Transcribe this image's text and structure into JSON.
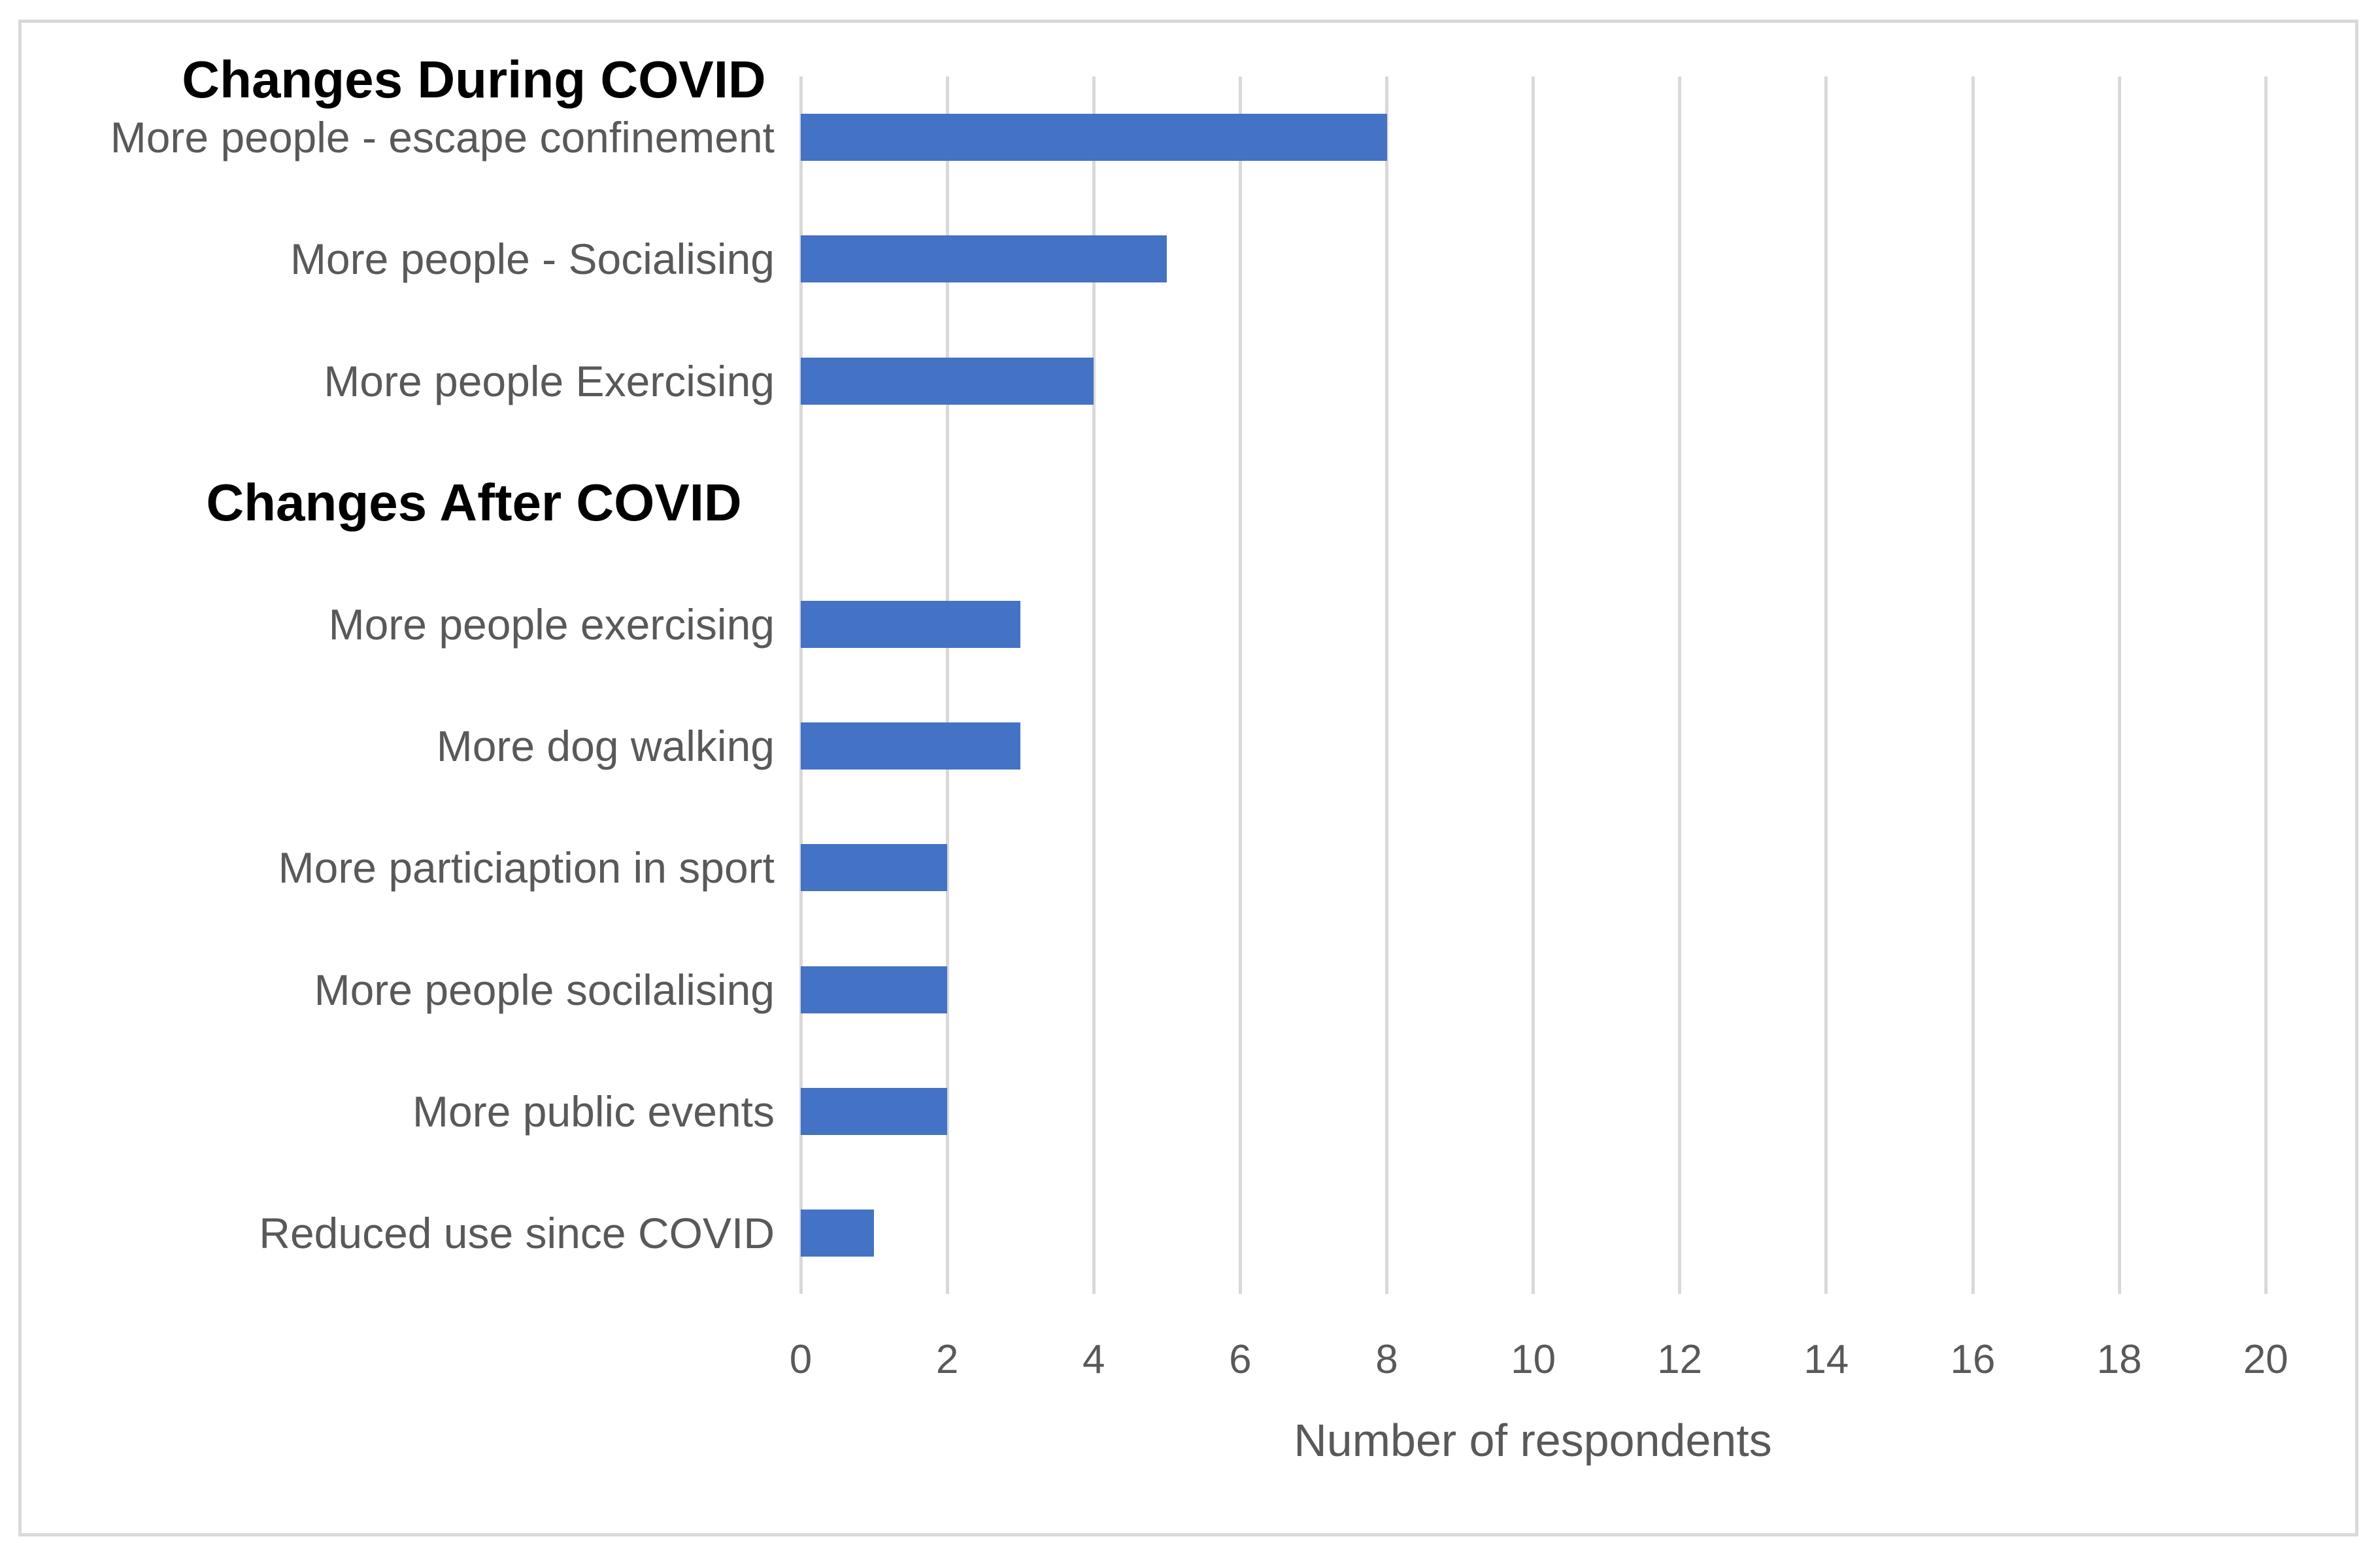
{
  "chart_data": {
    "type": "bar",
    "orientation": "horizontal",
    "top_header": "Changes During COVID",
    "section_headers": [
      "Changes During COVID",
      "Changes After COVID"
    ],
    "rows": [
      {
        "label": "More people - escape confinement",
        "value": 8,
        "header": false
      },
      {
        "label": "More people - Socialising",
        "value": 5,
        "header": false
      },
      {
        "label": "More people Exercising",
        "value": 4,
        "header": false
      },
      {
        "label": "Changes After COVID",
        "value": 0,
        "header": true
      },
      {
        "label": "More people exercising",
        "value": 3,
        "header": false
      },
      {
        "label": "More dog walking",
        "value": 3,
        "header": false
      },
      {
        "label": "More particiaption in sport",
        "value": 2,
        "header": false
      },
      {
        "label": "More people socilalising",
        "value": 2,
        "header": false
      },
      {
        "label": "More public events",
        "value": 2,
        "header": false
      },
      {
        "label": "Reduced use since COVID",
        "value": 1,
        "header": false
      }
    ],
    "xlabel": "Number of respondents",
    "x_ticks": [
      0,
      2,
      4,
      6,
      8,
      10,
      12,
      14,
      16,
      18,
      20
    ],
    "xlim": [
      0,
      20
    ],
    "grid": true,
    "legend": false,
    "colors": {
      "bar": "#4472C4",
      "gridline": "#D9D9D9",
      "border": "#D9D9D9",
      "label": "#595959",
      "header": "#000000",
      "background": "#FFFFFF"
    }
  }
}
